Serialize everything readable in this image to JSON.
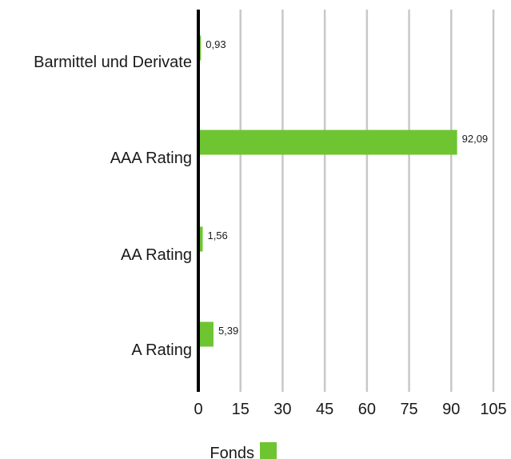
{
  "chart_data": {
    "type": "bar",
    "orientation": "horizontal",
    "categories": [
      "Barmittel und Derivate",
      "AAA Rating",
      "AA Rating",
      "A Rating"
    ],
    "series": [
      {
        "name": "Fonds",
        "values": [
          0.93,
          92.09,
          1.56,
          5.39
        ],
        "value_labels": [
          "0,93",
          "92,09",
          "1,56",
          "5,39"
        ],
        "color": "#6ec531"
      }
    ],
    "xlim": [
      0,
      105
    ],
    "x_ticks": [
      0,
      15,
      30,
      45,
      60,
      75,
      90,
      105
    ],
    "x_tick_labels": [
      "0",
      "15",
      "30",
      "45",
      "60",
      "75",
      "90",
      "105"
    ],
    "grid": "vertical",
    "legend_position": "bottom",
    "title": "",
    "xlabel": "",
    "ylabel": ""
  },
  "colors": {
    "bar": "#6ec531",
    "grid": "#c8c8c8",
    "axis": "#000000"
  }
}
